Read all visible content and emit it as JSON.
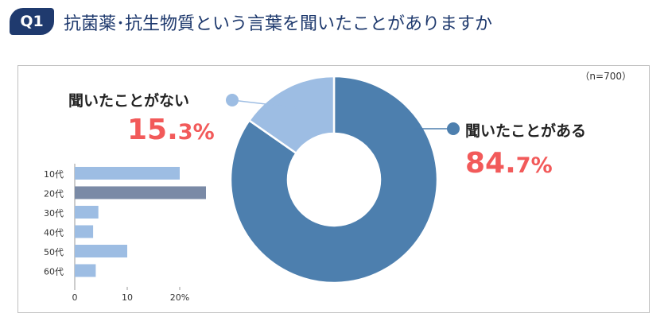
{
  "header": {
    "badge": "Q1",
    "title": "抗菌薬･抗生物質という言葉を聞いたことがありますか"
  },
  "sample_note": "（n=700）",
  "donut": {
    "no": {
      "label": "聞いたことがない",
      "pct_int": "15.",
      "pct_dec": "3%",
      "color": "#9dbde3"
    },
    "yes": {
      "label": "聞いたことがある",
      "pct_int": "84.",
      "pct_dec": "7%",
      "color": "#4d7fae"
    },
    "value_color": "#f25a5a"
  },
  "chart_data": [
    {
      "type": "pie",
      "variant": "donut",
      "categories": [
        "聞いたことがある",
        "聞いたことがない"
      ],
      "values": [
        84.7,
        15.3
      ],
      "colors": [
        "#4d7fae",
        "#9dbde3"
      ]
    },
    {
      "type": "bar",
      "orientation": "horizontal",
      "categories": [
        "10代",
        "20代",
        "30代",
        "40代",
        "50代",
        "60代"
      ],
      "values": [
        20,
        25,
        4.5,
        3.5,
        10,
        4
      ],
      "xticks": [
        "0",
        "10",
        "20%"
      ],
      "xlim": [
        0,
        25
      ],
      "colors": [
        "#9dbde3",
        "#7a8aa6",
        "#9dbde3",
        "#9dbde3",
        "#9dbde3",
        "#9dbde3"
      ]
    }
  ]
}
